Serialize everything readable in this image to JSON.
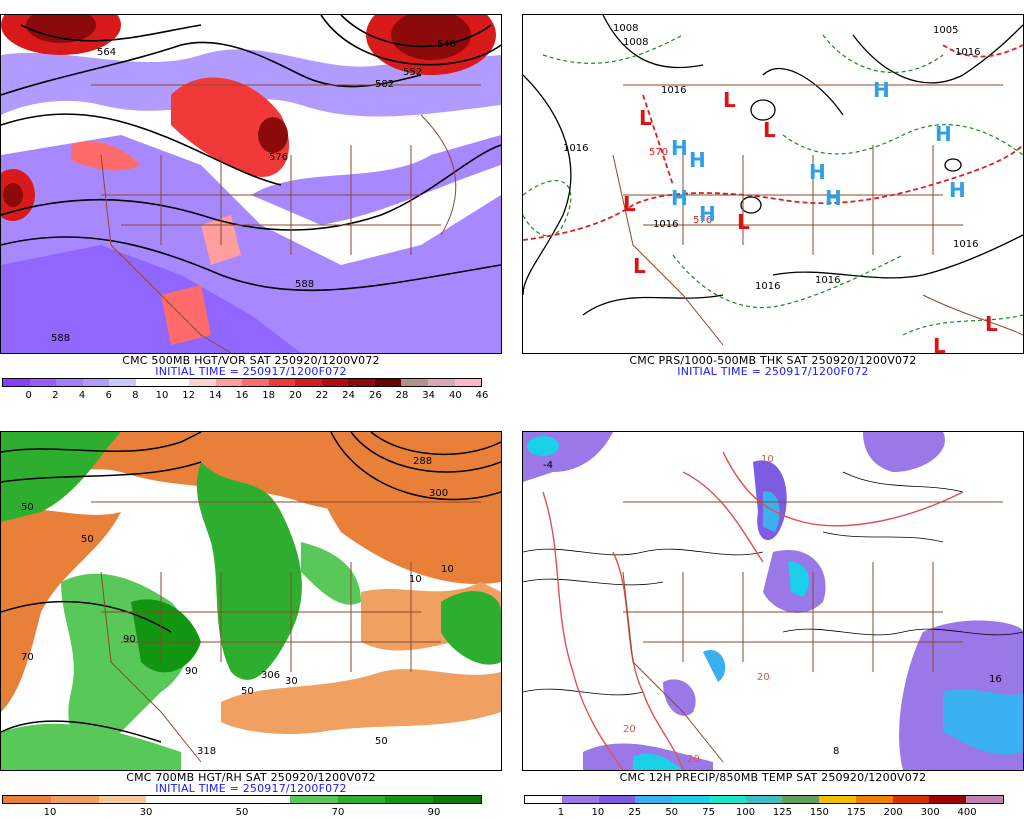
{
  "panels": [
    {
      "id": "vor",
      "caption": "CMC 500MB HGT/VOR SAT 250920/1200V072",
      "initial": "INITIAL TIME = 250917/1200F072",
      "colorbar": [
        "#8b3dff",
        "#9b5cff",
        "#a57cff",
        "#b29bff",
        "#c9c9ff",
        "#ffffff",
        "#ffffff",
        "#ffd0d0",
        "#ff9e9e",
        "#ff6b6b",
        "#f03a3a",
        "#d81a1a",
        "#b80a0a",
        "#8c0a0a",
        "#6a0000",
        "#b09090",
        "#d8a8b8",
        "#ffb6c8"
      ],
      "ticks": [
        "0",
        "2",
        "4",
        "6",
        "8",
        "10",
        "12",
        "14",
        "16",
        "18",
        "20",
        "22",
        "24",
        "26",
        "28",
        "34",
        "40",
        "46"
      ],
      "labels": [
        "564",
        "540",
        "552",
        "582",
        "576",
        "588",
        "588"
      ]
    },
    {
      "id": "prs",
      "caption": "CMC PRS/1000-500MB THK SAT 250920/1200V072",
      "initial": "INITIAL TIME = 250917/1200F072",
      "labels": [
        "1008",
        "1008",
        "1016",
        "1016",
        "1016",
        "570",
        "576",
        "1016",
        "1016",
        "1016",
        "1005",
        "1016"
      ],
      "lows": [
        "L",
        "L",
        "L",
        "L",
        "L",
        "L",
        "L",
        "L"
      ],
      "highs": [
        "H",
        "H",
        "H",
        "H",
        "H",
        "H",
        "H",
        "H",
        "H"
      ]
    },
    {
      "id": "rh",
      "caption": "CMC 700MB HGT/RH SAT 250920/1200V072",
      "initial": "INITIAL TIME = 250917/1200F072",
      "colorbar": [
        "#e8803a",
        "#f0a060",
        "#f7c79e",
        "#ffffff",
        "#ffffff",
        "#ffffff",
        "#58c858",
        "#2eae2e",
        "#129612",
        "#0a7a0a"
      ],
      "ticks": [
        "10",
        "30",
        "50",
        "70",
        "90"
      ],
      "labels": [
        "288",
        "300",
        "318",
        "306",
        "50",
        "50",
        "50",
        "90",
        "90",
        "70",
        "10",
        "10",
        "50",
        "30"
      ]
    },
    {
      "id": "precip",
      "caption": "CMC 12H PRECIP/850MB TEMP SAT 250920/1200V072",
      "colorbar": [
        "#ffffff",
        "#9a78e8",
        "#7c5ce0",
        "#3ab0f0",
        "#1ad0e8",
        "#1ae8c8",
        "#3ac0c0",
        "#60a060",
        "#f0c000",
        "#f08000",
        "#d83000",
        "#a00000",
        "#c080b0"
      ],
      "ticks": [
        "1",
        "10",
        "25",
        "50",
        "75",
        "100",
        "125",
        "150",
        "175",
        "200",
        "300",
        "400"
      ],
      "labels": [
        "10",
        "20",
        "20",
        "20",
        "16",
        "-4",
        "8"
      ]
    }
  ]
}
